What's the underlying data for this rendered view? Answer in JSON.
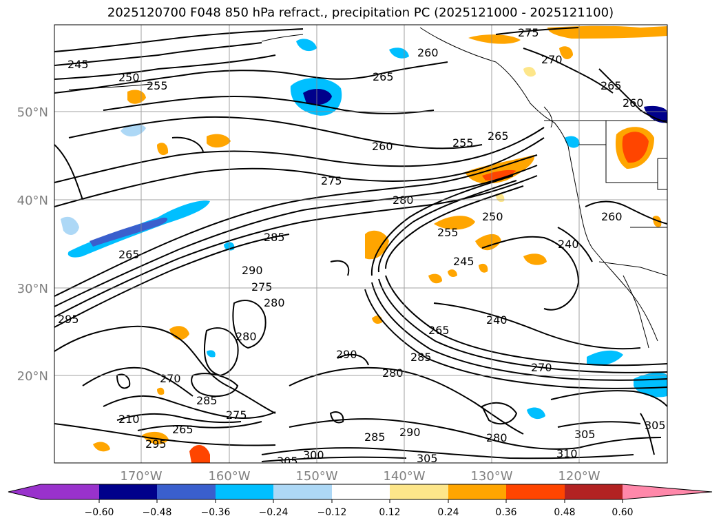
{
  "title": "2025120700 F048 850 hPa refract., precipitation PC (2025121000 - 2025121100)",
  "lat_labels": [
    "50°N",
    "40°N",
    "30°N",
    "20°N"
  ],
  "lon_labels": [
    "170°W",
    "160°W",
    "150°W",
    "140°W",
    "130°W",
    "120°W"
  ],
  "colorbar": {
    "colors": [
      "#9932cc",
      "#00008b",
      "#3a5fcd",
      "#00bfff",
      "#add8f6",
      "#ffffff",
      "#fde68a",
      "#ffa500",
      "#ff4500",
      "#b22222",
      "#ff88aa"
    ],
    "ticks": [
      "−0.60",
      "−0.48",
      "−0.36",
      "−0.24",
      "−0.12",
      "0.12",
      "0.24",
      "0.36",
      "0.48",
      "0.60"
    ]
  },
  "contour_labels": [
    "245",
    "250",
    "255",
    "265",
    "260",
    "275",
    "270",
    "265",
    "260",
    "260",
    "255",
    "265",
    "275",
    "280",
    "265",
    "285",
    "290",
    "275",
    "280",
    "255",
    "250",
    "245",
    "260",
    "240",
    "295",
    "280",
    "270",
    "290",
    "285",
    "280",
    "265",
    "240",
    "270",
    "285",
    "275",
    "265",
    "210",
    "295",
    "285",
    "290",
    "280",
    "305",
    "310",
    "305",
    "305",
    "300",
    "305"
  ]
}
